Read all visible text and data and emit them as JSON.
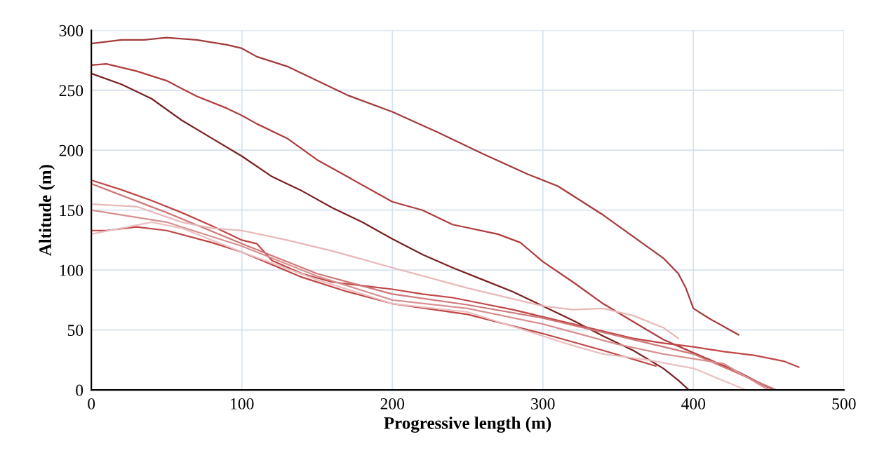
{
  "chart_data": {
    "type": "line",
    "xlabel": "Progressive length (m)",
    "ylabel": "Altitude (m)",
    "xlim": [
      0,
      500
    ],
    "ylim": [
      0,
      300
    ],
    "xticks": [
      0,
      100,
      200,
      300,
      400,
      500
    ],
    "yticks": [
      0,
      50,
      100,
      150,
      200,
      250,
      300
    ],
    "grid": true,
    "marker": "none",
    "line_style": "solid",
    "series": [
      {
        "color": "#a33a3a",
        "x": [
          0,
          20,
          35,
          50,
          70,
          90,
          100,
          110,
          130,
          150,
          170,
          200,
          230,
          260,
          290,
          310,
          340,
          360,
          380,
          390,
          395,
          400,
          410,
          430
        ],
        "values": [
          289,
          292,
          292,
          294,
          292,
          288,
          285,
          278,
          270,
          258,
          246,
          232,
          215,
          197,
          180,
          170,
          146,
          128,
          110,
          97,
          85,
          68,
          60,
          46
        ]
      },
      {
        "color": "#b03c3c",
        "x": [
          0,
          10,
          30,
          50,
          70,
          90,
          100,
          110,
          130,
          150,
          170,
          200,
          220,
          240,
          270,
          285,
          300,
          320,
          340,
          360,
          380,
          400,
          430,
          450,
          455
        ],
        "values": [
          271,
          272,
          266,
          258,
          245,
          235,
          229,
          222,
          210,
          192,
          178,
          157,
          150,
          138,
          130,
          123,
          107,
          90,
          72,
          57,
          42,
          31,
          15,
          2,
          0
        ]
      },
      {
        "color": "#7a2020",
        "x": [
          0,
          20,
          40,
          60,
          80,
          100,
          120,
          140,
          160,
          180,
          200,
          220,
          240,
          260,
          280,
          300,
          320,
          340,
          360,
          380,
          390,
          397
        ],
        "values": [
          264,
          255,
          243,
          225,
          210,
          195,
          178,
          166,
          152,
          140,
          126,
          113,
          102,
          92,
          82,
          70,
          58,
          45,
          33,
          18,
          8,
          0
        ]
      },
      {
        "color": "#c04545",
        "x": [
          0,
          20,
          40,
          60,
          80,
          100,
          110,
          120,
          140,
          160,
          180,
          200,
          220,
          240,
          260,
          280,
          300,
          320,
          340,
          360,
          380,
          400,
          420,
          440,
          460,
          470
        ],
        "values": [
          175,
          167,
          158,
          148,
          137,
          125,
          122,
          108,
          97,
          90,
          87,
          84,
          80,
          77,
          72,
          67,
          61,
          55,
          49,
          43,
          39,
          36,
          32,
          29,
          24,
          19
        ]
      },
      {
        "color": "#d07878",
        "x": [
          0,
          50,
          100,
          150,
          200,
          250,
          300,
          350,
          400,
          455
        ],
        "values": [
          172,
          148,
          122,
          97,
          80,
          71,
          60,
          45,
          30,
          0
        ]
      },
      {
        "color": "#e8b8b8",
        "x": [
          0,
          30,
          60,
          80,
          100,
          130,
          160,
          200,
          250,
          300,
          320,
          340,
          360,
          380,
          390
        ],
        "values": [
          155,
          153,
          140,
          135,
          133,
          125,
          116,
          102,
          85,
          70,
          67,
          68,
          62,
          52,
          43
        ]
      },
      {
        "color": "#d89090",
        "x": [
          0,
          50,
          100,
          150,
          200,
          250,
          300,
          350,
          380,
          420,
          450
        ],
        "values": [
          150,
          140,
          120,
          95,
          75,
          68,
          55,
          38,
          30,
          22,
          0
        ]
      },
      {
        "color": "#c04545",
        "x": [
          0,
          10,
          30,
          50,
          80,
          100,
          140,
          170,
          200,
          250,
          300,
          340,
          375
        ],
        "values": [
          133,
          133,
          136,
          133,
          123,
          115,
          94,
          82,
          72,
          63,
          47,
          33,
          20
        ]
      },
      {
        "color": "#eac0c0",
        "x": [
          0,
          20,
          40,
          60,
          100,
          150,
          200,
          250,
          300,
          320,
          340,
          370,
          400,
          435
        ],
        "values": [
          130,
          135,
          140,
          135,
          115,
          92,
          72,
          65,
          45,
          37,
          30,
          25,
          18,
          0
        ]
      }
    ]
  }
}
